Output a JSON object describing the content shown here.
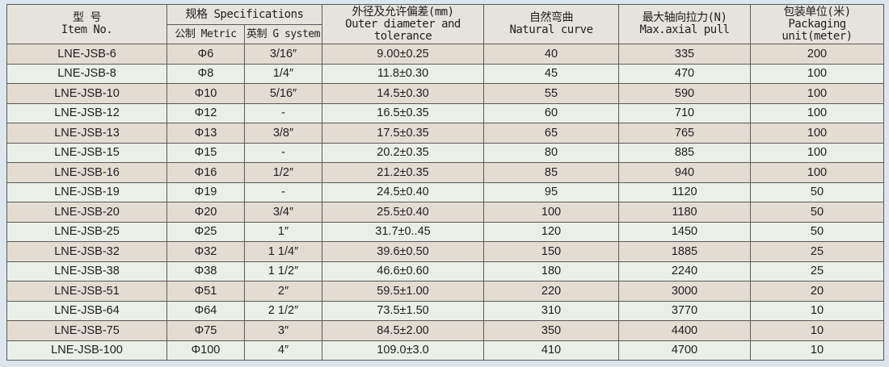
{
  "headers": {
    "item_zh": "型 号",
    "item_en": "Item No.",
    "spec": "规格 Specifications",
    "metric": "公制 Metric",
    "gsys": "英制 G system",
    "od_zh": "外径及允许偏差(mm)",
    "od_en": "Outer diameter and tolerance",
    "curve_zh": "自然弯曲",
    "curve_en": "Natural curve",
    "pull_zh": "最大轴向拉力(N)",
    "pull_en": "Max.axial pull",
    "pack_zh": "包装单位(米)",
    "pack_en": "Packaging unit(meter)"
  },
  "rows": [
    [
      "LNE-JSB-6",
      "Φ6",
      "3/16″",
      "9.00±0.25",
      "40",
      "335",
      "200"
    ],
    [
      "LNE-JSB-8",
      "Φ8",
      "1/4″",
      "11.8±0.30",
      "45",
      "470",
      "100"
    ],
    [
      "LNE-JSB-10",
      "Φ10",
      "5/16″",
      "14.5±0.30",
      "55",
      "590",
      "100"
    ],
    [
      "LNE-JSB-12",
      "Φ12",
      "-",
      "16.5±0.35",
      "60",
      "710",
      "100"
    ],
    [
      "LNE-JSB-13",
      "Φ13",
      "3/8″",
      "17.5±0.35",
      "65",
      "765",
      "100"
    ],
    [
      "LNE-JSB-15",
      "Φ15",
      "-",
      "20.2±0.35",
      "80",
      "885",
      "100"
    ],
    [
      "LNE-JSB-16",
      "Φ16",
      "1/2″",
      "21.2±0.35",
      "85",
      "940",
      "100"
    ],
    [
      "LNE-JSB-19",
      "Φ19",
      "-",
      "24.5±0.40",
      "95",
      "1120",
      "50"
    ],
    [
      "LNE-JSB-20",
      "Φ20",
      "3/4″",
      "25.5±0.40",
      "100",
      "1180",
      "50"
    ],
    [
      "LNE-JSB-25",
      "Φ25",
      "1″",
      "31.7±0..45",
      "120",
      "1450",
      "50"
    ],
    [
      "LNE-JSB-32",
      "Φ32",
      "1 1/4″",
      "39.6±0.50",
      "150",
      "1885",
      "25"
    ],
    [
      "LNE-JSB-38",
      "Φ38",
      "1 1/2″",
      "46.6±0.60",
      "180",
      "2240",
      "25"
    ],
    [
      "LNE-JSB-51",
      "Φ51",
      "2″",
      "59.5±1.00",
      "220",
      "3000",
      "20"
    ],
    [
      "LNE-JSB-64",
      "Φ64",
      "2 1/2″",
      "73.5±1.50",
      "310",
      "3770",
      "10"
    ],
    [
      "LNE-JSB-75",
      "Φ75",
      "3″",
      "84.5±2.00",
      "350",
      "4400",
      "10"
    ],
    [
      "LNE-JSB-100",
      "Φ100",
      "4″",
      "109.0±3.0",
      "410",
      "4700",
      "10"
    ]
  ]
}
